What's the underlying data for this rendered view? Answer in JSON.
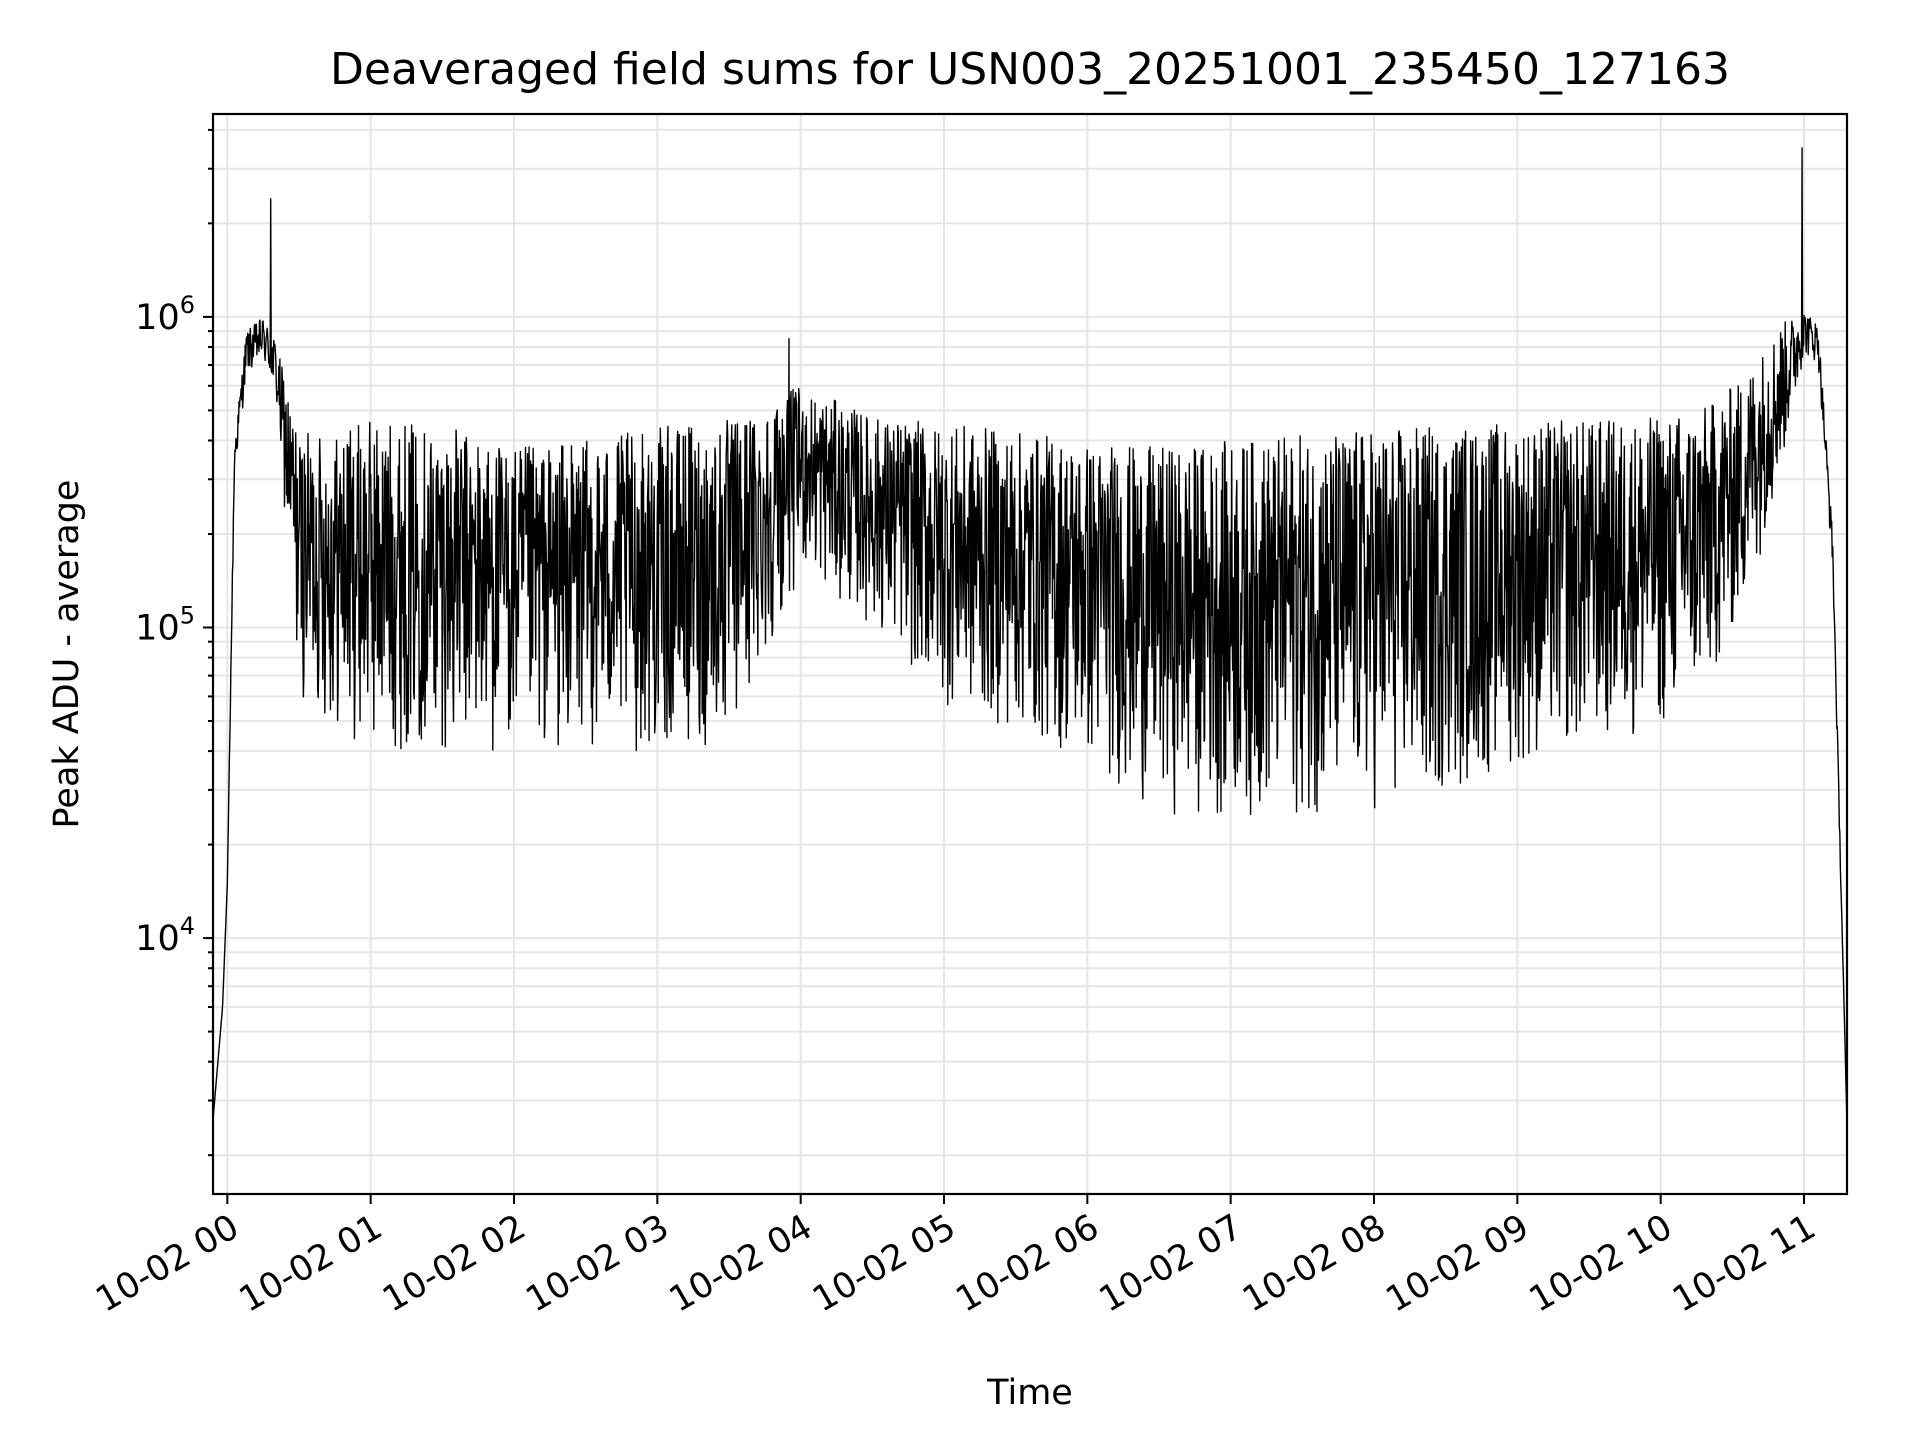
{
  "chart_data": {
    "type": "line",
    "title": "Deaveraged field sums for USN003_20251001_235450_127163",
    "xlabel": "Time",
    "ylabel": "Peak ADU - average",
    "yscale": "log",
    "xlim": [
      "10-01 23:54",
      "10-02 11:18"
    ],
    "ylim": [
      1500,
      4500000
    ],
    "grid": true,
    "x_tick_labels": [
      "10-02 00",
      "10-02 01",
      "10-02 02",
      "10-02 03",
      "10-02 04",
      "10-02 05",
      "10-02 06",
      "10-02 07",
      "10-02 08",
      "10-02 09",
      "10-02 10",
      "10-02 11"
    ],
    "y_ticks": [
      {
        "base": "10",
        "exp": "4",
        "value": 10000
      },
      {
        "base": "10",
        "exp": "5",
        "value": 100000
      },
      {
        "base": "10",
        "exp": "6",
        "value": 1000000
      }
    ],
    "series": [
      {
        "color": "#000000",
        "envelope": {
          "x": [
            "10-01 23:54",
            "10-01 23:58",
            "10-02 00:00",
            "10-02 00:03",
            "10-02 00:08",
            "10-02 00:15",
            "10-02 00:20",
            "10-02 00:30",
            "10-02 00:45",
            "10-02 01:00",
            "10-02 01:30",
            "10-02 02:00",
            "10-02 02:30",
            "10-02 03:00",
            "10-02 03:30",
            "10-02 04:00",
            "10-02 04:30",
            "10-02 05:00",
            "10-02 05:30",
            "10-02 06:00",
            "10-02 06:30",
            "10-02 07:00",
            "10-02 07:30",
            "10-02 08:00",
            "10-02 08:30",
            "10-02 09:00",
            "10-02 09:30",
            "10-02 10:00",
            "10-02 10:20",
            "10-02 10:35",
            "10-02 10:50",
            "10-02 11:00",
            "10-02 11:06",
            "10-02 11:12",
            "10-02 11:18"
          ],
          "high": [
            2600,
            6000,
            15000,
            400000,
            900000,
            1000000,
            850000,
            420000,
            430000,
            470000,
            450000,
            380000,
            400000,
            440000,
            470000,
            600000,
            480000,
            450000,
            430000,
            400000,
            380000,
            400000,
            420000,
            440000,
            450000,
            460000,
            470000,
            480000,
            520000,
            650000,
            950000,
            1050000,
            950000,
            200000,
            2500
          ],
          "low": [
            2600,
            6000,
            15000,
            300000,
            650000,
            700000,
            550000,
            60000,
            45000,
            40000,
            40000,
            38000,
            40000,
            38000,
            40000,
            150000,
            100000,
            55000,
            45000,
            35000,
            25000,
            24000,
            24000,
            25000,
            28000,
            35000,
            40000,
            45000,
            60000,
            110000,
            300000,
            750000,
            700000,
            150000,
            2500
          ]
        },
        "spikes": [
          {
            "x": "10-02 00:18",
            "y": 2400000
          },
          {
            "x": "10-02 03:55",
            "y": 850000
          },
          {
            "x": "10-02 10:59",
            "y": 3500000
          }
        ]
      }
    ]
  }
}
